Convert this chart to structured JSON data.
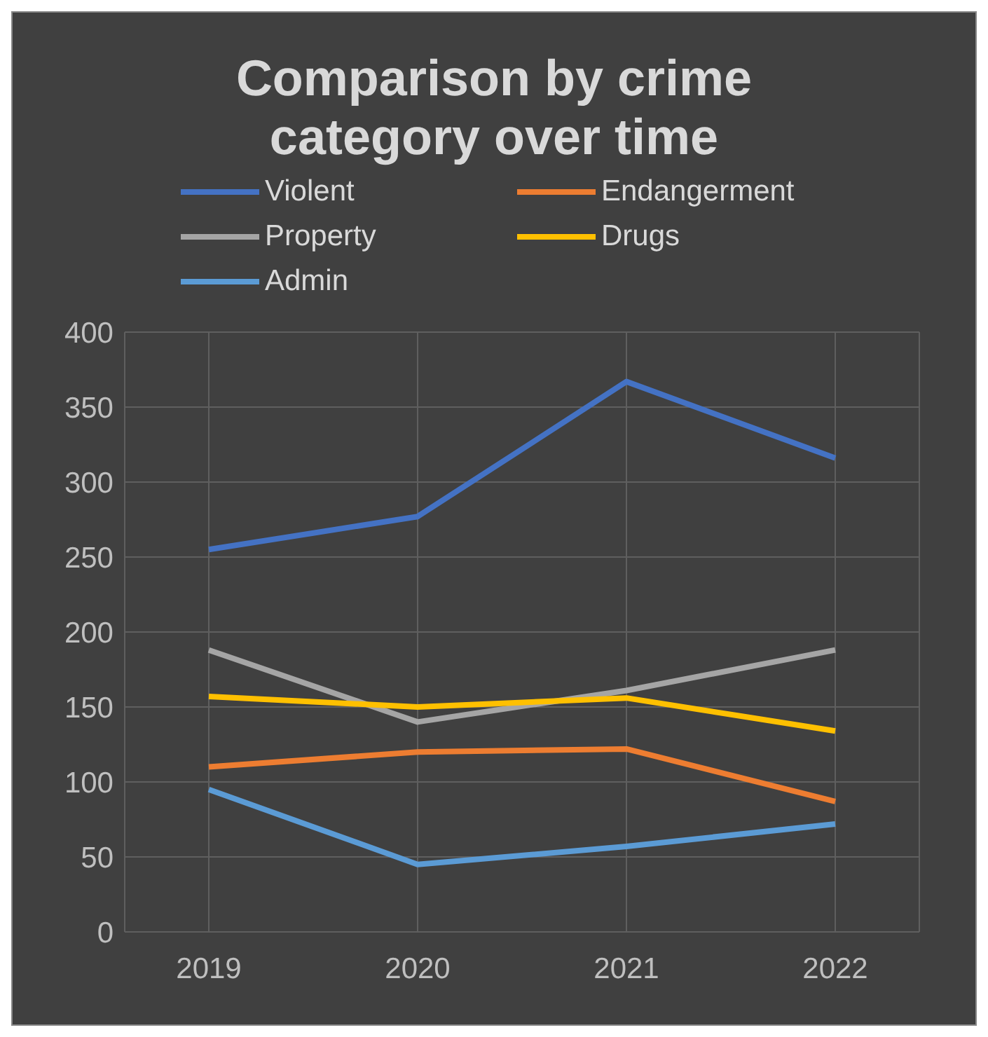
{
  "chart_data": {
    "type": "line",
    "title": "Comparison by crime category over time",
    "categories": [
      "2019",
      "2020",
      "2021",
      "2022"
    ],
    "series": [
      {
        "name": "Violent",
        "color": "#4472c4",
        "values": [
          255,
          277,
          367,
          316
        ]
      },
      {
        "name": "Endangerment",
        "color": "#ed7d31",
        "values": [
          110,
          120,
          122,
          87
        ]
      },
      {
        "name": "Property",
        "color": "#a5a5a5",
        "values": [
          188,
          140,
          161,
          188
        ]
      },
      {
        "name": "Drugs",
        "color": "#ffc000",
        "values": [
          157,
          150,
          156,
          134
        ]
      },
      {
        "name": "Admin",
        "color": "#5b9bd5",
        "values": [
          95,
          45,
          57,
          72
        ]
      }
    ],
    "ylim": [
      0,
      400
    ],
    "yticks": [
      0,
      50,
      100,
      150,
      200,
      250,
      300,
      350,
      400
    ],
    "grid": true,
    "legend": "top",
    "marker": "none",
    "line_style": "solid"
  }
}
